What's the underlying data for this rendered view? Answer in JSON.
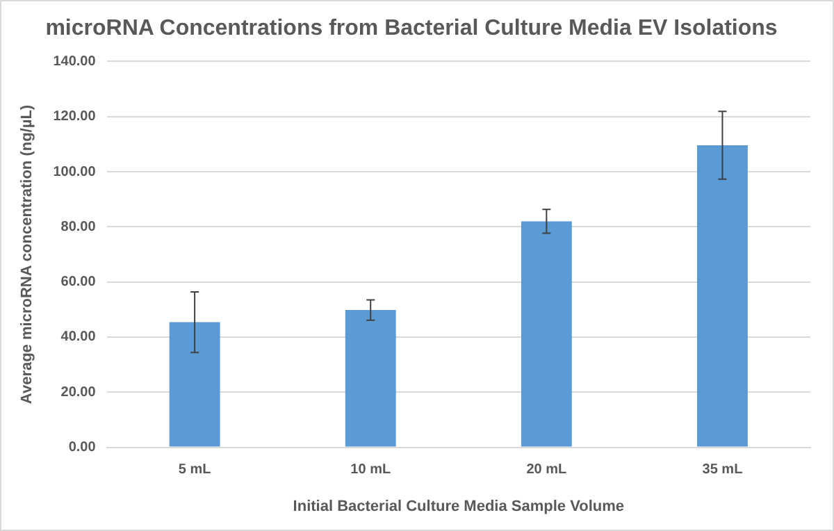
{
  "chart_data": {
    "type": "bar",
    "title": "microRNA Concentrations from Bacterial Culture Media EV Isolations",
    "xlabel": "Initial Bacterial Culture Media Sample Volume",
    "ylabel": "Average microRNA concentration (ng/µL)",
    "categories": [
      "5 mL",
      "10 mL",
      "20 mL",
      "35 mL"
    ],
    "values": [
      45.4,
      49.8,
      82.0,
      109.6
    ],
    "errors": [
      11,
      3.7,
      4.3,
      12.3
    ],
    "color": "#5b9bd5",
    "ylim": [
      0,
      140
    ],
    "yticks": [
      {
        "value": 0,
        "label": "0.00"
      },
      {
        "value": 20,
        "label": "20.00"
      },
      {
        "value": 40,
        "label": "40.00"
      },
      {
        "value": 60,
        "label": "60.00"
      },
      {
        "value": 80,
        "label": "80.00"
      },
      {
        "value": 100,
        "label": "100.00"
      },
      {
        "value": 120,
        "label": "120.00"
      },
      {
        "value": 140,
        "label": "140.00"
      }
    ],
    "grid": "y"
  }
}
